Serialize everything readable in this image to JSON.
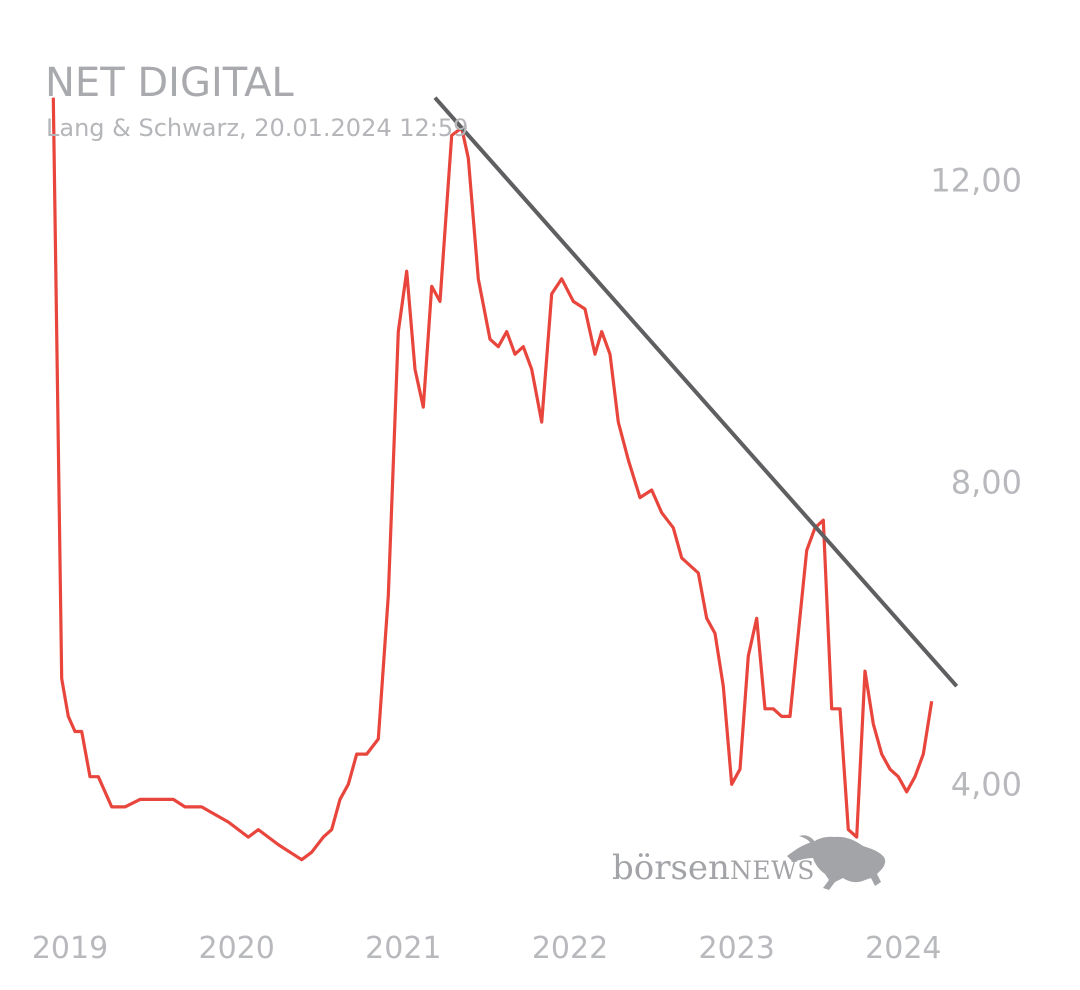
{
  "header": {
    "title": "NET DIGITAL",
    "subtitle": "Lang & Schwarz, 20.01.2024 12:59"
  },
  "logo": {
    "text_main": "börsen",
    "text_accent": "NEWS",
    "icon": "bull-icon"
  },
  "colors": {
    "line": "#e8453c",
    "trend": "#5f5f61",
    "text": "#b8b9bc",
    "logo": "#a3a4a7"
  },
  "chart_data": {
    "type": "line",
    "title": "NET DIGITAL",
    "x_tick_labels": [
      "2019",
      "2020",
      "2021",
      "2022",
      "2023",
      "2024"
    ],
    "y_tick_labels": [
      "12,00",
      "8,00",
      "4,00"
    ],
    "y_ticks": [
      12,
      8,
      4
    ],
    "ylim": [
      2.4,
      13.6
    ],
    "xlim": [
      2018.85,
      2024.25
    ],
    "grid": false,
    "series": [
      {
        "values": [
          [
            2018.93,
            13.1
          ],
          [
            2018.98,
            5.4
          ],
          [
            2019.02,
            4.9
          ],
          [
            2019.06,
            4.7
          ],
          [
            2019.1,
            4.7
          ],
          [
            2019.15,
            4.1
          ],
          [
            2019.2,
            4.1
          ],
          [
            2019.28,
            3.7
          ],
          [
            2019.36,
            3.7
          ],
          [
            2019.45,
            3.8
          ],
          [
            2019.55,
            3.8
          ],
          [
            2019.65,
            3.8
          ],
          [
            2019.72,
            3.7
          ],
          [
            2019.82,
            3.7
          ],
          [
            2019.9,
            3.6
          ],
          [
            2019.98,
            3.5
          ],
          [
            2020.1,
            3.3
          ],
          [
            2020.16,
            3.4
          ],
          [
            2020.22,
            3.3
          ],
          [
            2020.28,
            3.2
          ],
          [
            2020.35,
            3.1
          ],
          [
            2020.42,
            3.0
          ],
          [
            2020.48,
            3.1
          ],
          [
            2020.55,
            3.3
          ],
          [
            2020.6,
            3.4
          ],
          [
            2020.65,
            3.8
          ],
          [
            2020.7,
            4.0
          ],
          [
            2020.75,
            4.4
          ],
          [
            2020.81,
            4.4
          ],
          [
            2020.88,
            4.6
          ],
          [
            2020.94,
            6.5
          ],
          [
            2021.0,
            10.0
          ],
          [
            2021.05,
            10.8
          ],
          [
            2021.1,
            9.5
          ],
          [
            2021.15,
            9.0
          ],
          [
            2021.2,
            10.6
          ],
          [
            2021.25,
            10.4
          ],
          [
            2021.32,
            12.6
          ],
          [
            2021.38,
            12.7
          ],
          [
            2021.42,
            12.3
          ],
          [
            2021.48,
            10.7
          ],
          [
            2021.55,
            9.9
          ],
          [
            2021.6,
            9.8
          ],
          [
            2021.65,
            10.0
          ],
          [
            2021.7,
            9.7
          ],
          [
            2021.75,
            9.8
          ],
          [
            2021.8,
            9.5
          ],
          [
            2021.86,
            8.8
          ],
          [
            2021.92,
            10.5
          ],
          [
            2021.98,
            10.7
          ],
          [
            2022.05,
            10.4
          ],
          [
            2022.12,
            10.3
          ],
          [
            2022.18,
            9.7
          ],
          [
            2022.22,
            10.0
          ],
          [
            2022.27,
            9.7
          ],
          [
            2022.32,
            8.8
          ],
          [
            2022.38,
            8.3
          ],
          [
            2022.45,
            7.8
          ],
          [
            2022.52,
            7.9
          ],
          [
            2022.58,
            7.6
          ],
          [
            2022.65,
            7.4
          ],
          [
            2022.7,
            7.0
          ],
          [
            2022.75,
            6.9
          ],
          [
            2022.8,
            6.8
          ],
          [
            2022.85,
            6.2
          ],
          [
            2022.9,
            6.0
          ],
          [
            2022.95,
            5.3
          ],
          [
            2023.0,
            4.0
          ],
          [
            2023.05,
            4.2
          ],
          [
            2023.1,
            5.7
          ],
          [
            2023.15,
            6.2
          ],
          [
            2023.2,
            5.0
          ],
          [
            2023.25,
            5.0
          ],
          [
            2023.3,
            4.9
          ],
          [
            2023.35,
            4.9
          ],
          [
            2023.4,
            6.0
          ],
          [
            2023.45,
            7.1
          ],
          [
            2023.5,
            7.4
          ],
          [
            2023.55,
            7.5
          ],
          [
            2023.6,
            5.0
          ],
          [
            2023.65,
            5.0
          ],
          [
            2023.7,
            3.4
          ],
          [
            2023.75,
            3.3
          ],
          [
            2023.8,
            5.5
          ],
          [
            2023.85,
            4.8
          ],
          [
            2023.9,
            4.4
          ],
          [
            2023.95,
            4.2
          ],
          [
            2024.0,
            4.1
          ],
          [
            2024.05,
            3.9
          ],
          [
            2024.1,
            4.1
          ],
          [
            2024.15,
            4.4
          ],
          [
            2024.2,
            5.1
          ]
        ]
      }
    ],
    "trendline": {
      "start": [
        2021.22,
        13.1
      ],
      "end": [
        2024.35,
        5.3
      ]
    }
  }
}
